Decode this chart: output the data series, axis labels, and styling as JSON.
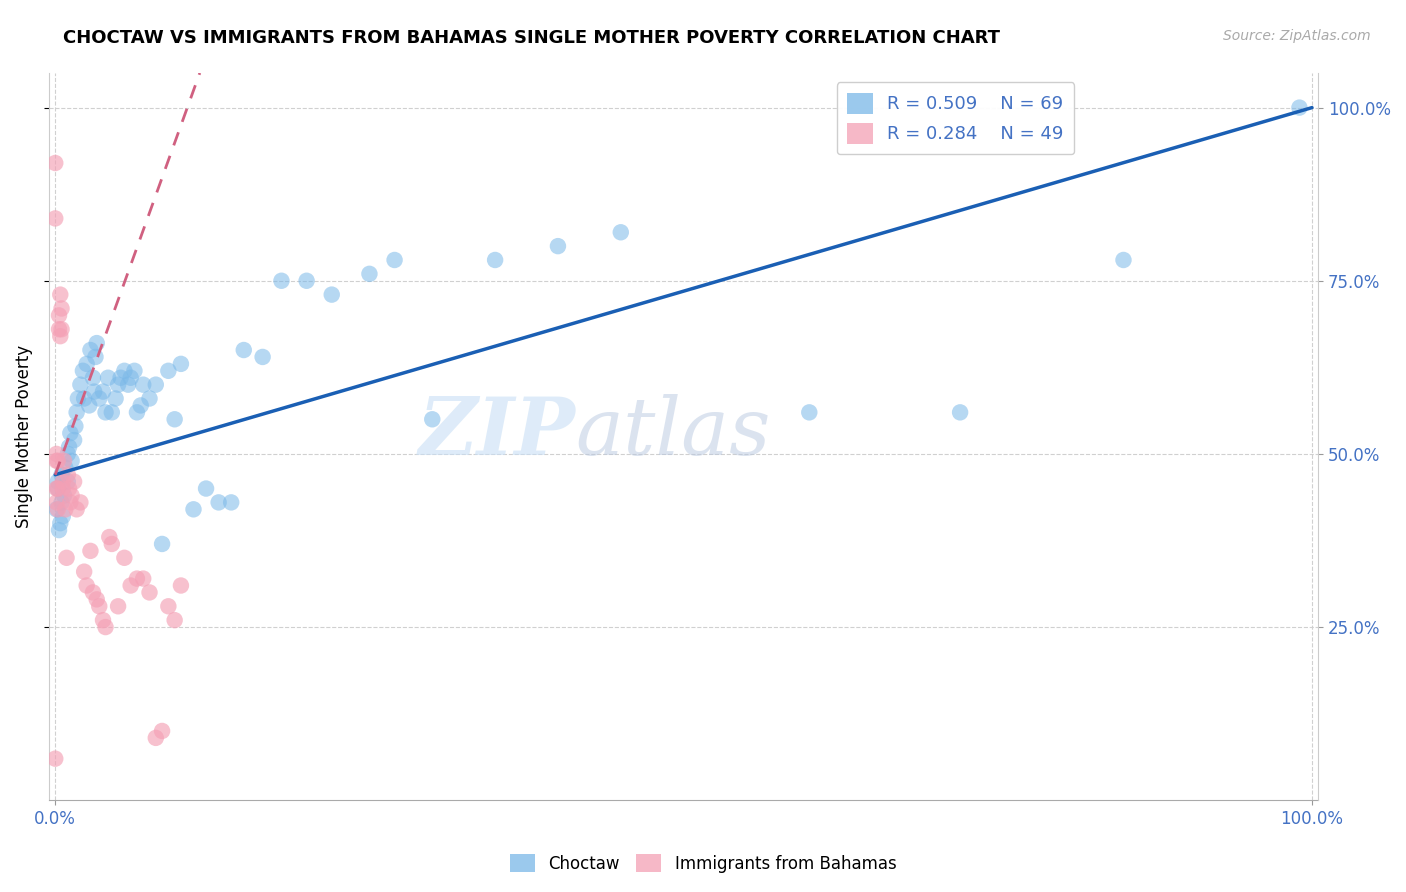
{
  "title": "CHOCTAW VS IMMIGRANTS FROM BAHAMAS SINGLE MOTHER POVERTY CORRELATION CHART",
  "source": "Source: ZipAtlas.com",
  "ylabel": "Single Mother Poverty",
  "r_blue": 0.509,
  "n_blue": 69,
  "r_pink": 0.284,
  "n_pink": 49,
  "blue_color": "#7ab8e8",
  "pink_color": "#f4a0b5",
  "line_blue": "#1a5fb4",
  "line_pink": "#d06080",
  "watermark_zip": "ZIP",
  "watermark_atlas": "atlas",
  "legend_blue_label": "Choctaw",
  "legend_pink_label": "Immigrants from Bahamas",
  "blue_x": [
    0.001,
    0.002,
    0.002,
    0.003,
    0.004,
    0.005,
    0.005,
    0.006,
    0.007,
    0.008,
    0.01,
    0.01,
    0.011,
    0.012,
    0.013,
    0.015,
    0.016,
    0.017,
    0.018,
    0.02,
    0.022,
    0.023,
    0.025,
    0.027,
    0.028,
    0.03,
    0.031,
    0.032,
    0.033,
    0.035,
    0.038,
    0.04,
    0.042,
    0.045,
    0.048,
    0.05,
    0.052,
    0.055,
    0.058,
    0.06,
    0.063,
    0.065,
    0.068,
    0.07,
    0.075,
    0.08,
    0.085,
    0.09,
    0.095,
    0.1,
    0.11,
    0.12,
    0.13,
    0.14,
    0.15,
    0.165,
    0.18,
    0.2,
    0.22,
    0.25,
    0.27,
    0.3,
    0.35,
    0.4,
    0.45,
    0.6,
    0.72,
    0.85,
    0.99
  ],
  "blue_y": [
    0.42,
    0.45,
    0.46,
    0.39,
    0.4,
    0.43,
    0.47,
    0.41,
    0.44,
    0.48,
    0.46,
    0.5,
    0.51,
    0.53,
    0.49,
    0.52,
    0.54,
    0.56,
    0.58,
    0.6,
    0.62,
    0.58,
    0.63,
    0.57,
    0.65,
    0.61,
    0.59,
    0.64,
    0.66,
    0.58,
    0.59,
    0.56,
    0.61,
    0.56,
    0.58,
    0.6,
    0.61,
    0.62,
    0.6,
    0.61,
    0.62,
    0.56,
    0.57,
    0.6,
    0.58,
    0.6,
    0.37,
    0.62,
    0.55,
    0.63,
    0.42,
    0.45,
    0.43,
    0.43,
    0.65,
    0.64,
    0.75,
    0.75,
    0.73,
    0.76,
    0.78,
    0.55,
    0.78,
    0.8,
    0.82,
    0.56,
    0.56,
    0.78,
    1.0
  ],
  "pink_x": [
    0.0,
    0.0,
    0.0,
    0.001,
    0.001,
    0.001,
    0.001,
    0.002,
    0.002,
    0.002,
    0.003,
    0.003,
    0.004,
    0.004,
    0.005,
    0.005,
    0.006,
    0.006,
    0.007,
    0.008,
    0.009,
    0.01,
    0.011,
    0.012,
    0.013,
    0.015,
    0.017,
    0.02,
    0.023,
    0.025,
    0.028,
    0.03,
    0.033,
    0.035,
    0.038,
    0.04,
    0.043,
    0.045,
    0.05,
    0.055,
    0.06,
    0.065,
    0.07,
    0.075,
    0.08,
    0.085,
    0.09,
    0.095,
    0.1
  ],
  "pink_y": [
    0.92,
    0.84,
    0.06,
    0.5,
    0.49,
    0.45,
    0.43,
    0.49,
    0.45,
    0.42,
    0.7,
    0.68,
    0.73,
    0.67,
    0.71,
    0.68,
    0.46,
    0.45,
    0.49,
    0.42,
    0.35,
    0.47,
    0.45,
    0.43,
    0.44,
    0.46,
    0.42,
    0.43,
    0.33,
    0.31,
    0.36,
    0.3,
    0.29,
    0.28,
    0.26,
    0.25,
    0.38,
    0.37,
    0.28,
    0.35,
    0.31,
    0.32,
    0.32,
    0.3,
    0.09,
    0.1,
    0.28,
    0.26,
    0.31
  ],
  "blue_line_x0": 0.0,
  "blue_line_x1": 1.0,
  "blue_line_y0": 0.47,
  "blue_line_y1": 1.0,
  "pink_line_x0": 0.0,
  "pink_line_x1": 0.115,
  "pink_line_y0": 0.47,
  "pink_line_y1": 1.05,
  "xlim_min": -0.005,
  "xlim_max": 1.005,
  "ylim_min": 0.0,
  "ylim_max": 1.05,
  "yticks_right": [
    0.25,
    0.5,
    0.75,
    1.0
  ],
  "ytick_labels_right": [
    "25.0%",
    "50.0%",
    "75.0%",
    "100.0%"
  ],
  "xtick_labels": [
    "0.0%",
    "100.0%"
  ],
  "xtick_positions": [
    0.0,
    1.0
  ],
  "title_fontsize": 13,
  "source_fontsize": 10,
  "axis_tick_color": "#4472c4",
  "grid_color": "#d0d0d0",
  "background_color": "#ffffff"
}
